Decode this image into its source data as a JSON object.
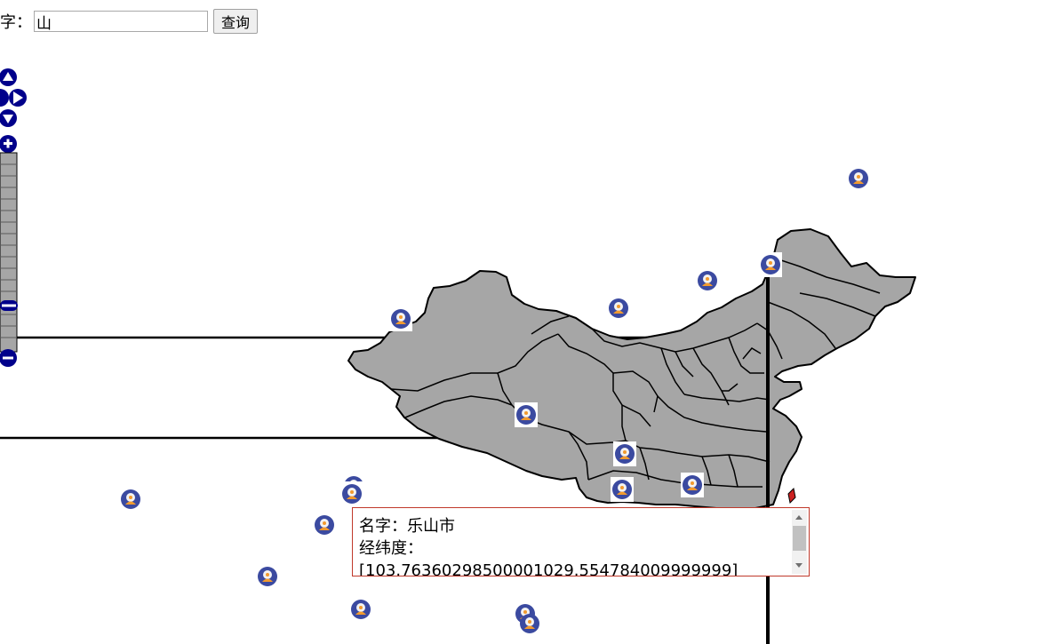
{
  "search": {
    "label": "字：",
    "value": "山",
    "button_label": "查询"
  },
  "popup": {
    "name_line": "名字：乐山市",
    "coord_label": "经纬度：",
    "coord_value": "[103.76360298500001029.554784009999999]"
  },
  "map": {
    "land_color": "#a6a6a6",
    "border_color": "#000000",
    "nav_color": "#00008b",
    "marker_icon": "map-marker-icon"
  }
}
